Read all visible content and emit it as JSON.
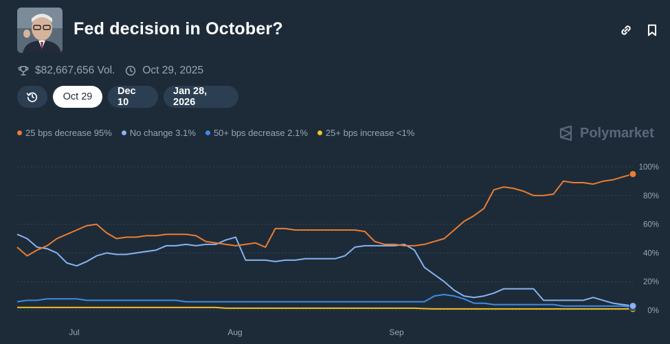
{
  "header": {
    "title": "Fed decision in October?",
    "volume": "$82,667,656 Vol.",
    "end_date": "Oct 29, 2025"
  },
  "date_tabs": [
    "Oct 29",
    "Dec 10",
    "Jan 28, 2026"
  ],
  "brand": "Polymarket",
  "colors": {
    "background": "#1d2b39",
    "orange": "#ed7d31",
    "light_blue": "#86b5f0",
    "blue": "#3d8ee6",
    "yellow": "#f2c422"
  },
  "chart_data": {
    "type": "line",
    "x_ticks": [
      "Jul",
      "Aug",
      "Sep"
    ],
    "y_ticks": [
      "100%",
      "80%",
      "60%",
      "40%",
      "20%",
      "0%"
    ],
    "ylim": [
      0,
      100
    ],
    "grid": "horizontal dashed",
    "legend_position": "top-left",
    "series": [
      {
        "name": "25 bps decrease",
        "label": "95%",
        "color": "#ed7d31",
        "values": [
          44,
          38,
          42,
          45,
          50,
          53,
          56,
          59,
          60,
          54,
          50,
          51,
          51,
          52,
          52,
          53,
          53,
          53,
          52,
          48,
          47,
          46,
          45,
          46,
          47,
          44,
          57,
          57,
          56,
          56,
          56,
          56,
          56,
          56,
          56,
          55,
          48,
          46,
          46,
          45,
          45,
          46,
          48,
          50,
          56,
          62,
          66,
          71,
          84,
          86,
          85,
          83,
          80,
          80,
          81,
          90,
          89,
          89,
          88,
          90,
          91,
          93,
          95
        ]
      },
      {
        "name": "No change",
        "label": "3.1%",
        "color": "#86b5f0",
        "values": [
          53,
          50,
          44,
          43,
          40,
          33,
          31,
          34,
          38,
          40,
          39,
          39,
          40,
          41,
          42,
          45,
          45,
          46,
          45,
          46,
          46,
          49,
          51,
          35,
          35,
          35,
          34,
          35,
          35,
          36,
          36,
          36,
          36,
          38,
          44,
          45,
          45,
          45,
          45,
          46,
          42,
          30,
          25,
          20,
          14,
          10,
          9,
          10,
          12,
          15,
          15,
          15,
          15,
          7,
          7,
          7,
          7,
          7,
          9,
          7,
          5,
          4,
          3.1
        ]
      },
      {
        "name": "50+ bps decrease",
        "label": "2.1%",
        "color": "#3d8ee6",
        "values": [
          6,
          7,
          7,
          8,
          8,
          8,
          8,
          7,
          7,
          7,
          7,
          7,
          7,
          7,
          7,
          7,
          7,
          6,
          6,
          6,
          6,
          6,
          6,
          6,
          6,
          6,
          6,
          6,
          6,
          6,
          6,
          6,
          6,
          6,
          6,
          6,
          6,
          6,
          6,
          6,
          6,
          6,
          10,
          11,
          10,
          8,
          5,
          5,
          4,
          4,
          4,
          4,
          4,
          4,
          4,
          3,
          3,
          3,
          3,
          3,
          3,
          3,
          2.1
        ]
      },
      {
        "name": "25+ bps increase",
        "label": "<1%",
        "color": "#f2c422",
        "values": [
          2,
          2,
          2,
          2,
          2,
          2,
          2,
          2,
          2,
          2,
          2,
          2,
          2,
          2,
          2,
          2,
          2,
          2,
          2,
          2,
          2,
          1.5,
          1.5,
          1.5,
          1.5,
          1.5,
          1.5,
          1.5,
          1.5,
          1.5,
          1.5,
          1.5,
          1.5,
          1.5,
          1.5,
          1.5,
          1.5,
          1.5,
          1.5,
          1.5,
          1.5,
          1.2,
          1,
          1,
          1,
          1,
          1,
          1,
          1,
          1,
          1,
          1,
          1,
          1,
          1,
          1,
          1,
          1,
          1,
          1,
          1,
          1,
          1
        ]
      }
    ]
  }
}
